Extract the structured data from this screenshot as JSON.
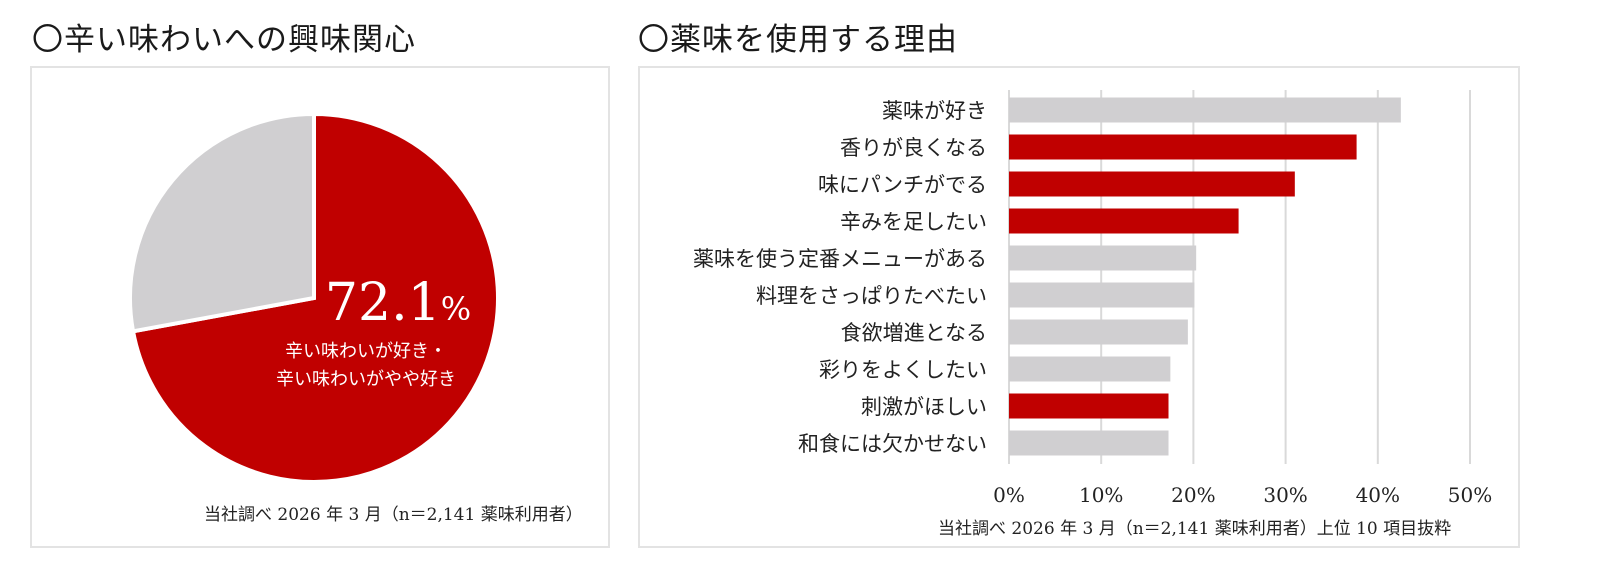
{
  "left": {
    "title": "〇辛い味わいへの興味関心",
    "note": "当社調べ 2026 年 3 月（n＝2,141  薬味利用者）"
  },
  "right": {
    "title": "〇薬味を使用する理由",
    "note": "当社調べ 2026 年 3 月（n＝2,141  薬味利用者）上位 10 項目抜粋"
  },
  "colors": {
    "red": "#c00000",
    "gray": "#d0cfd1",
    "grid": "#d9d9d9"
  },
  "chart_data": [
    {
      "type": "pie",
      "slices": [
        {
          "label": "辛い味わいが好き・辛い味わいがやや好き",
          "value": 72.1,
          "color": "#c00000"
        },
        {
          "label": "",
          "value": 27.9,
          "color": "#d0cfd1"
        }
      ],
      "data_label": {
        "value": "72.1",
        "unit": "%",
        "lines": [
          "辛い味わいが好き・",
          "辛い味わいがやや好き"
        ]
      }
    },
    {
      "type": "bar",
      "orientation": "horizontal",
      "categories": [
        "薬味が好き",
        "香りが良くなる",
        "味にパンチがでる",
        "辛みを足したい",
        "薬味を使う定番メニューがある",
        "料理をさっぱりたべたい",
        "食欲増進となる",
        "彩りをよくしたい",
        "刺激がほしい",
        "和食には欠かせない"
      ],
      "values": [
        42.5,
        37.7,
        31.0,
        24.9,
        20.3,
        20.1,
        19.4,
        17.5,
        17.3,
        17.3
      ],
      "highlight": [
        false,
        true,
        true,
        true,
        false,
        false,
        false,
        false,
        true,
        false
      ],
      "xlim": [
        0,
        50
      ],
      "xticks": [
        "0%",
        "10%",
        "20%",
        "30%",
        "40%",
        "50%"
      ],
      "grid": true
    }
  ]
}
